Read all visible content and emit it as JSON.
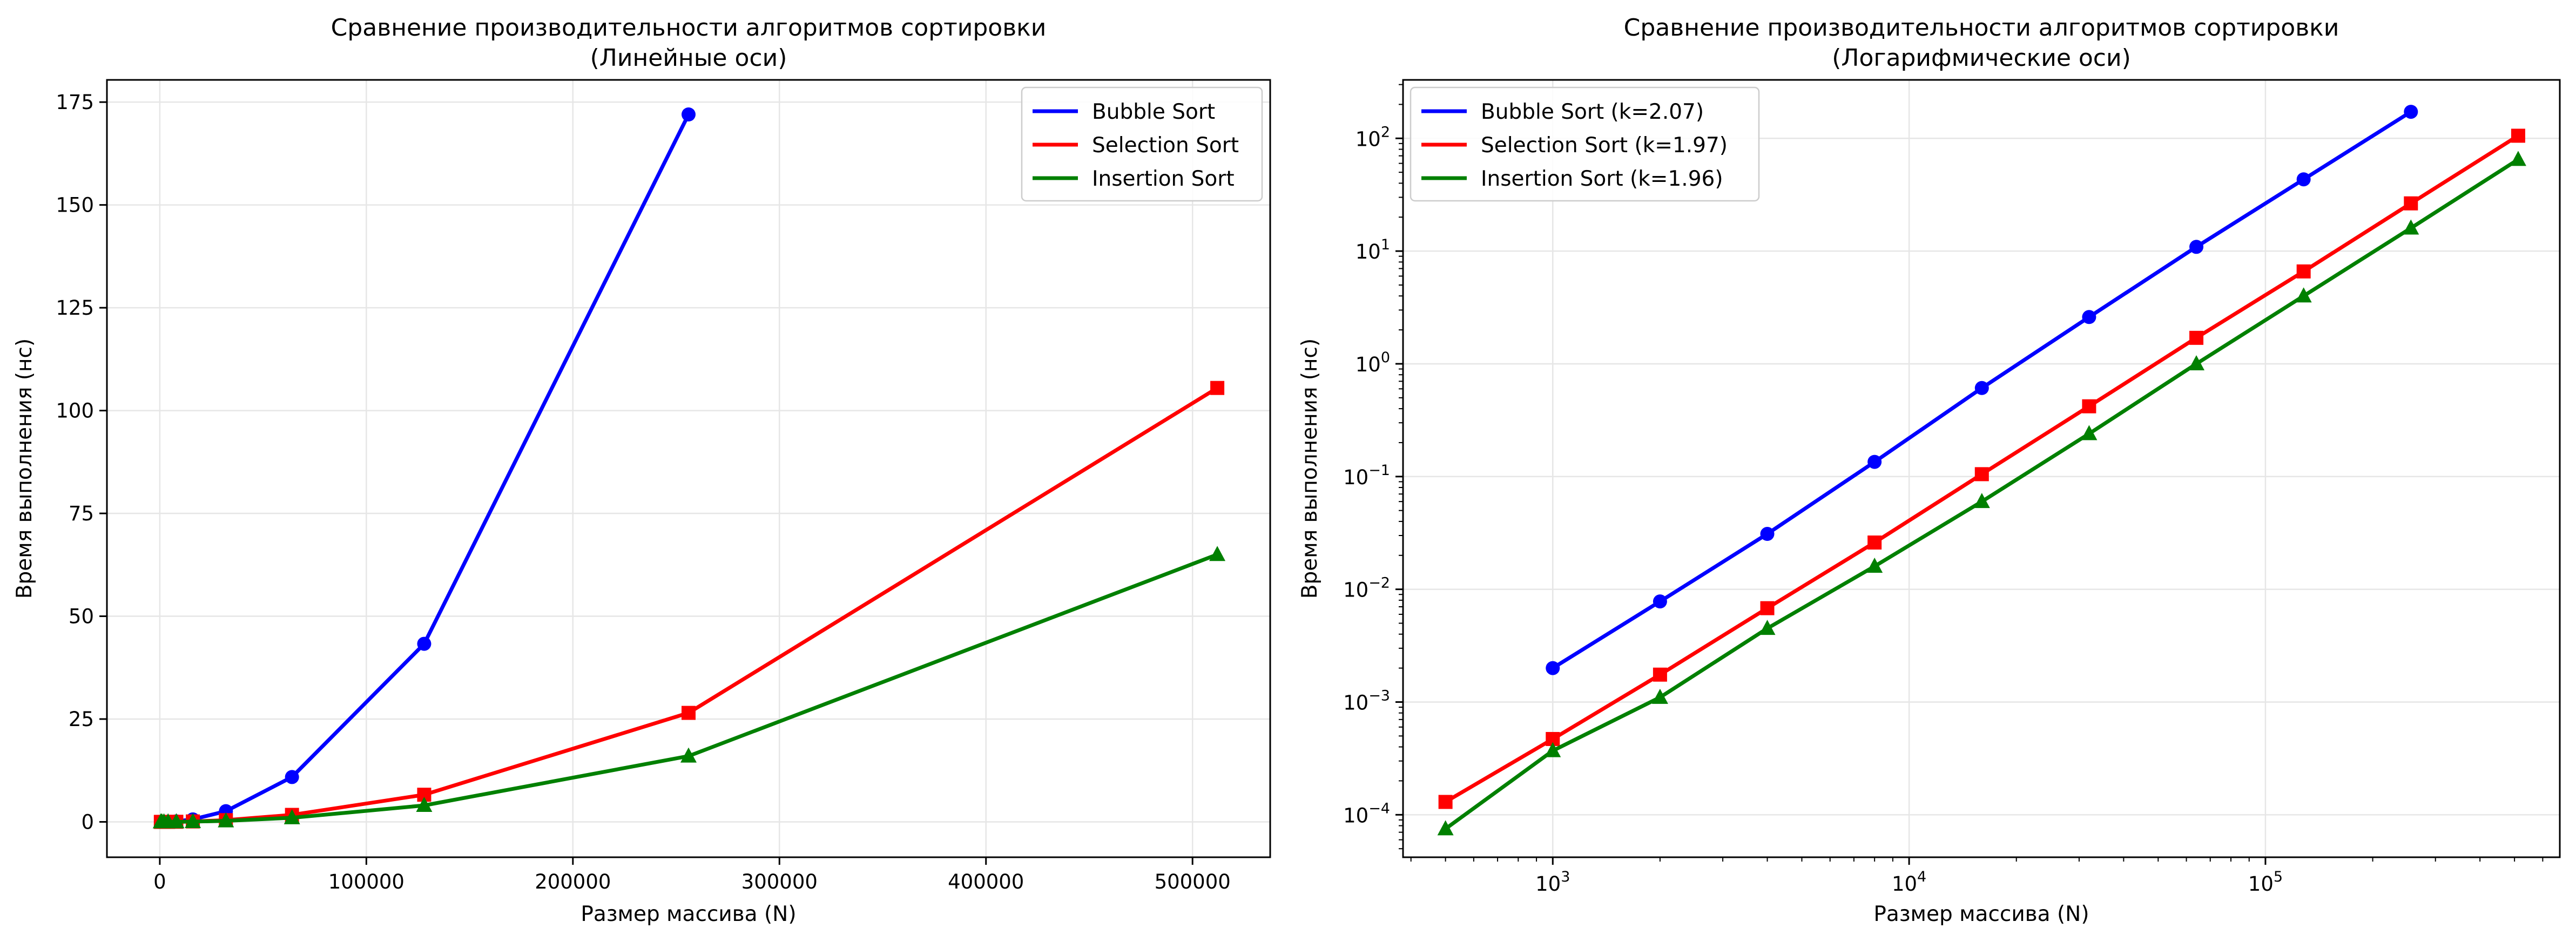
{
  "chart_data": [
    {
      "type": "line",
      "title": "Сравнение производительности алгоритмов сортировки",
      "subtitle": "(Линейные оси)",
      "xlabel": "Размер массива (N)",
      "ylabel": "Время выполнения (нс)",
      "xscale": "linear",
      "yscale": "linear",
      "xlim": [
        -25600,
        537600
      ],
      "ylim": [
        -8.6,
        180.4
      ],
      "xticks": [
        0,
        100000,
        200000,
        300000,
        400000,
        500000
      ],
      "xtick_labels": [
        "0",
        "100000",
        "200000",
        "300000",
        "400000",
        "500000"
      ],
      "yticks": [
        0,
        25,
        50,
        75,
        100,
        125,
        150,
        175
      ],
      "ytick_labels": [
        "0",
        "25",
        "50",
        "75",
        "100",
        "125",
        "150",
        "175"
      ],
      "grid": true,
      "legend_position": "top-right",
      "series": [
        {
          "name": "Bubble Sort",
          "color": "#0000ff",
          "marker": "circle",
          "x": [
            1000,
            2000,
            4000,
            8000,
            16000,
            32000,
            64000,
            128000,
            256000
          ],
          "y": [
            0.002,
            0.0078,
            0.031,
            0.135,
            0.61,
            2.6,
            10.9,
            43.3,
            172
          ]
        },
        {
          "name": "Selection Sort",
          "color": "#ff0000",
          "marker": "square",
          "x": [
            500,
            1000,
            2000,
            4000,
            8000,
            16000,
            32000,
            64000,
            128000,
            256000,
            512000
          ],
          "y": [
            0.00013,
            0.00047,
            0.00175,
            0.0068,
            0.026,
            0.105,
            0.42,
            1.7,
            6.6,
            26.5,
            105.5
          ]
        },
        {
          "name": "Insertion Sort",
          "color": "#008000",
          "marker": "triangle",
          "x": [
            500,
            1000,
            2000,
            4000,
            8000,
            16000,
            32000,
            64000,
            128000,
            256000,
            512000
          ],
          "y": [
            7.5e-05,
            0.00037,
            0.0011,
            0.0045,
            0.016,
            0.06,
            0.24,
            1.0,
            4.0,
            16.0,
            65.0
          ]
        }
      ]
    },
    {
      "type": "line",
      "title": "Сравнение производительности алгоритмов сортировки",
      "subtitle": "(Логарифмические оси)",
      "xlabel": "Размер массива (N)",
      "ylabel": "Время выполнения (нс)",
      "xscale": "log",
      "yscale": "log",
      "xlim": [
        380,
        670000
      ],
      "ylim": [
        4.2e-05,
        330
      ],
      "xticks": [
        1000,
        10000,
        100000
      ],
      "xtick_labels": [
        [
          "10",
          "3"
        ],
        [
          "10",
          "4"
        ],
        [
          "10",
          "5"
        ]
      ],
      "yticks": [
        0.0001,
        0.001,
        0.01,
        0.1,
        1,
        10,
        100
      ],
      "ytick_labels": [
        [
          "10",
          "−4"
        ],
        [
          "10",
          "−3"
        ],
        [
          "10",
          "−2"
        ],
        [
          "10",
          "−1"
        ],
        [
          "10",
          "0"
        ],
        [
          "10",
          "1"
        ],
        [
          "10",
          "2"
        ]
      ],
      "grid": true,
      "legend_position": "top-left",
      "series": [
        {
          "name": "Bubble Sort (k=2.07)",
          "color": "#0000ff",
          "marker": "circle",
          "x": [
            1000,
            2000,
            4000,
            8000,
            16000,
            32000,
            64000,
            128000,
            256000
          ],
          "y": [
            0.002,
            0.0078,
            0.031,
            0.135,
            0.61,
            2.6,
            10.9,
            43.3,
            172
          ]
        },
        {
          "name": "Selection Sort (k=1.97)",
          "color": "#ff0000",
          "marker": "square",
          "x": [
            500,
            1000,
            2000,
            4000,
            8000,
            16000,
            32000,
            64000,
            128000,
            256000,
            512000
          ],
          "y": [
            0.00013,
            0.00047,
            0.00175,
            0.0068,
            0.026,
            0.105,
            0.42,
            1.7,
            6.6,
            26.5,
            105.5
          ]
        },
        {
          "name": "Insertion Sort (k=1.96)",
          "color": "#008000",
          "marker": "triangle",
          "x": [
            500,
            1000,
            2000,
            4000,
            8000,
            16000,
            32000,
            64000,
            128000,
            256000,
            512000
          ],
          "y": [
            7.5e-05,
            0.00037,
            0.0011,
            0.0045,
            0.016,
            0.06,
            0.24,
            1.0,
            4.0,
            16.0,
            65.0
          ]
        }
      ]
    }
  ]
}
